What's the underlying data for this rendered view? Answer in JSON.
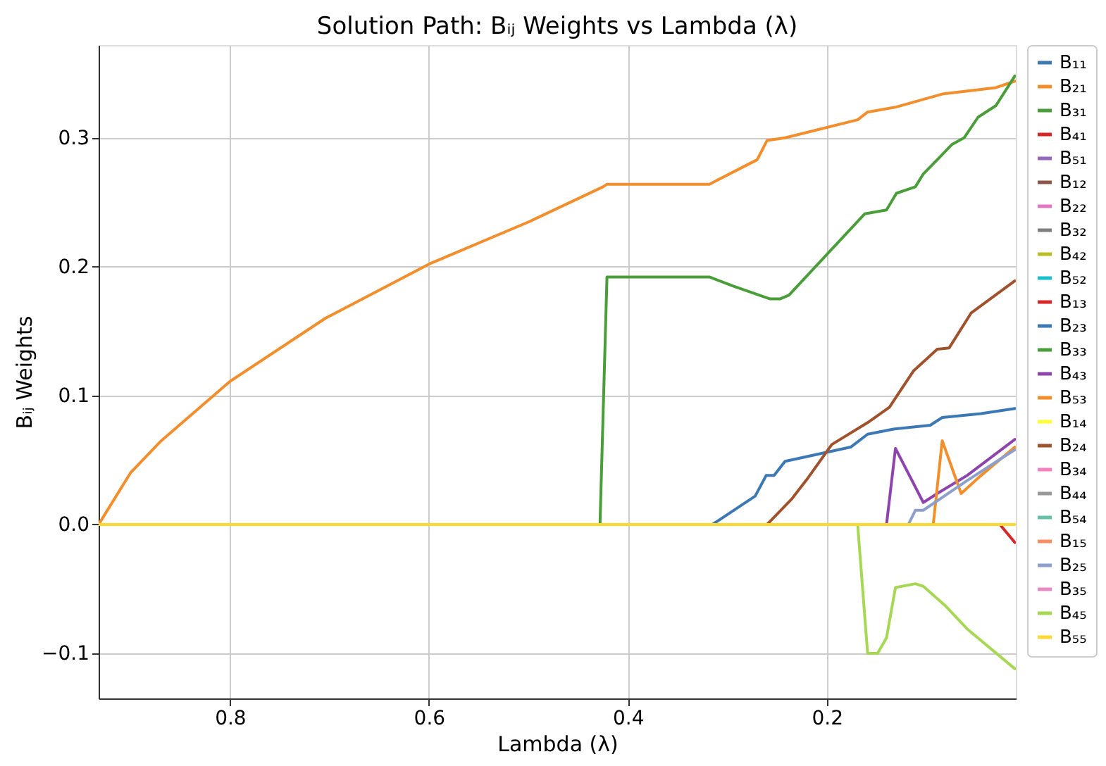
{
  "chart_data": {
    "type": "line",
    "title": "Solution Path: Bᵢⱼ Weights vs Lambda (λ)",
    "xlabel": "Lambda (λ)",
    "ylabel": "Bᵢⱼ Weights",
    "xlim": [
      0.932,
      0.01
    ],
    "ylim": [
      -0.135,
      0.372
    ],
    "xticks": [
      0.8,
      0.6,
      0.4,
      0.2
    ],
    "yticks": [
      {
        "value": -0.1,
        "label": "−0.1"
      },
      {
        "value": 0,
        "label": "0.0"
      },
      0.1,
      0.2,
      0.3
    ],
    "grid": true,
    "legend": "right",
    "marker": "none",
    "line_style": "solid",
    "series": [
      {
        "name": "B₁₁",
        "color": "#3c78b4",
        "x": [
          0.315,
          0.272,
          0.261,
          0.253,
          0.242,
          0.176,
          0.159,
          0.133,
          0.096,
          0.084,
          0.045,
          0.011
        ],
        "values": [
          0,
          0.022,
          0.038,
          0.038,
          0.049,
          0.06,
          0.07,
          0.074,
          0.077,
          0.083,
          0.086,
          0.09
        ]
      },
      {
        "name": "B₂₁",
        "color": "#f28e2b",
        "x": [
          0.932,
          0.9,
          0.869,
          0.8,
          0.704,
          0.6,
          0.499,
          0.425,
          0.421,
          0.318,
          0.27,
          0.26,
          0.242,
          0.169,
          0.159,
          0.13,
          0.084,
          0.03,
          0.011
        ],
        "values": [
          0,
          0.04,
          0.065,
          0.111,
          0.16,
          0.202,
          0.235,
          0.262,
          0.264,
          0.264,
          0.283,
          0.298,
          0.3,
          0.314,
          0.32,
          0.324,
          0.334,
          0.339,
          0.344
        ]
      },
      {
        "name": "B₃₁",
        "color": "#4a9e3a",
        "x": [
          0.932,
          0.428,
          0.421,
          0.318,
          0.294,
          0.257,
          0.247,
          0.238,
          0.162,
          0.14,
          0.13,
          0.111,
          0.103,
          0.089,
          0.074,
          0.062,
          0.048,
          0.03,
          0.011
        ],
        "values": [
          0,
          0,
          0.192,
          0.192,
          0.185,
          0.175,
          0.175,
          0.178,
          0.241,
          0.244,
          0.257,
          0.262,
          0.272,
          0.283,
          0.295,
          0.3,
          0.316,
          0.325,
          0.348
        ]
      },
      {
        "name": "B₄₁",
        "color": "#d62728",
        "x": [
          0.026,
          0.011
        ],
        "values": [
          0,
          -0.014
        ]
      },
      {
        "name": "B₅₁",
        "color": "#9467bd"
      },
      {
        "name": "B₁₂",
        "color": "#8c564b"
      },
      {
        "name": "B₂₂",
        "color": "#e377c2"
      },
      {
        "name": "B₃₂",
        "color": "#7f7f7f"
      },
      {
        "name": "B₄₂",
        "color": "#bcbd22"
      },
      {
        "name": "B₅₂",
        "color": "#17becf"
      },
      {
        "name": "B₁₃",
        "color": "#d62728"
      },
      {
        "name": "B₂₃",
        "color": "#3c78b4"
      },
      {
        "name": "B₃₃",
        "color": "#4a9e3a"
      },
      {
        "name": "B₄₃",
        "color": "#8e44ad",
        "x": [
          0.14,
          0.131,
          0.103,
          0.089,
          0.059,
          0.011
        ],
        "values": [
          0,
          0.059,
          0.017,
          0.024,
          0.038,
          0.066
        ]
      },
      {
        "name": "B₅₃",
        "color": "#f28e2b",
        "x": [
          0.093,
          0.084,
          0.065,
          0.045,
          0.011
        ],
        "values": [
          0,
          0.065,
          0.024,
          0.038,
          0.06
        ]
      },
      {
        "name": "B₁₄",
        "color": "#ffff33"
      },
      {
        "name": "B₂₄",
        "color": "#a0522d",
        "x": [
          0.26,
          0.235,
          0.22,
          0.195,
          0.159,
          0.137,
          0.113,
          0.089,
          0.077,
          0.055,
          0.011
        ],
        "values": [
          0,
          0.02,
          0.035,
          0.062,
          0.079,
          0.091,
          0.119,
          0.136,
          0.137,
          0.164,
          0.189
        ]
      },
      {
        "name": "B₃₄",
        "color": "#f781bf"
      },
      {
        "name": "B₄₄",
        "color": "#999999"
      },
      {
        "name": "B₅₄",
        "color": "#66c2a5"
      },
      {
        "name": "B₁₅",
        "color": "#fc8d62"
      },
      {
        "name": "B₂₅",
        "color": "#8da0cb",
        "x": [
          0.118,
          0.111,
          0.103,
          0.059,
          0.011
        ],
        "values": [
          0,
          0.011,
          0.011,
          0.034,
          0.058
        ]
      },
      {
        "name": "B₃₅",
        "color": "#e78ac3"
      },
      {
        "name": "B₄₅",
        "color": "#a6d854",
        "x": [
          0.169,
          0.159,
          0.149,
          0.14,
          0.131,
          0.111,
          0.103,
          0.081,
          0.059,
          0.011
        ],
        "values": [
          0,
          -0.1,
          -0.1,
          -0.088,
          -0.049,
          -0.046,
          -0.048,
          -0.063,
          -0.081,
          -0.112
        ]
      },
      {
        "name": "B₅₅",
        "color": "#ffd92f",
        "x": [
          0.932,
          0.011
        ],
        "values": [
          0,
          0
        ]
      }
    ]
  }
}
